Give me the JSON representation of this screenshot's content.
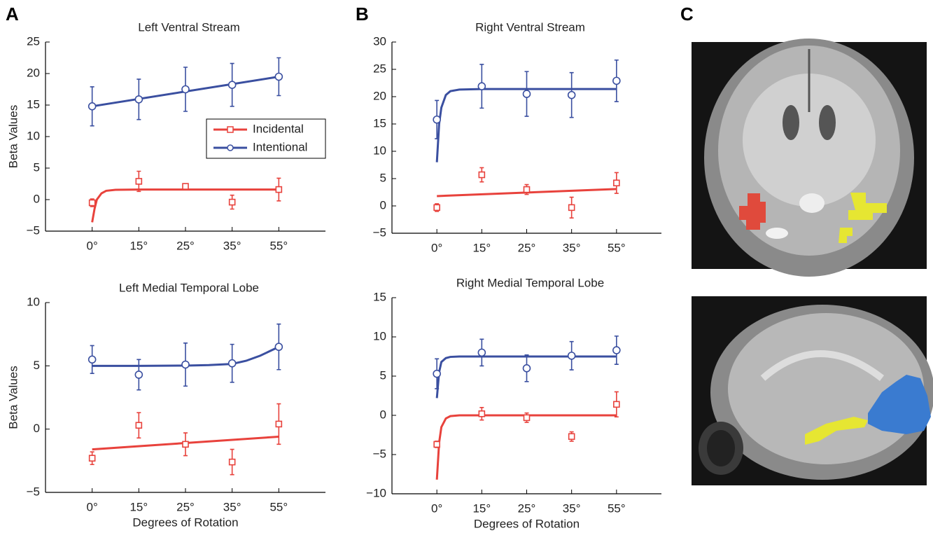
{
  "panel_labels": [
    "A",
    "B",
    "C"
  ],
  "chart_data": [
    {
      "type": "line",
      "title": "Left Ventral Stream",
      "ylabel": "Beta Values",
      "xlim": [
        -1,
        5
      ],
      "xticks": [
        {
          "value": 0,
          "label": "0°"
        },
        {
          "value": 1,
          "label": "15°"
        },
        {
          "value": 2,
          "label": "25°"
        },
        {
          "value": 3,
          "label": "35°"
        },
        {
          "value": 4,
          "label": "55°"
        }
      ],
      "ylim": [
        -5,
        25
      ],
      "yticks": [
        {
          "value": -5,
          "label": "−5"
        },
        0,
        5,
        10,
        15,
        20,
        25
      ],
      "legend": "upper right",
      "series": [
        {
          "name": "Incidental",
          "color": "#e8423c",
          "marker": "square",
          "x": [
            0,
            1,
            2,
            3,
            4
          ],
          "values": [
            -0.5,
            2.9,
            2.1,
            -0.4,
            1.6
          ],
          "errors": [
            0.6,
            1.6,
            0.4,
            1.1,
            1.8
          ],
          "fit": {
            "x": [
              0,
              0.05,
              0.1,
              0.2,
              0.3,
              0.5,
              1,
              4
            ],
            "values": [
              -3.6,
              -1.5,
              0,
              1.0,
              1.4,
              1.55,
              1.6,
              1.6
            ]
          }
        },
        {
          "name": "Intentional",
          "color": "#3a4fa0",
          "marker": "circle",
          "x": [
            0,
            1,
            2,
            3,
            4
          ],
          "values": [
            14.8,
            15.9,
            17.5,
            18.2,
            19.5
          ],
          "errors": [
            3.1,
            3.2,
            3.5,
            3.4,
            3.0
          ],
          "fit": {
            "x": [
              0,
              4
            ],
            "values": [
              14.8,
              19.5
            ]
          }
        }
      ]
    },
    {
      "type": "line",
      "title": "Right Ventral Stream",
      "xlim": [
        -1,
        5
      ],
      "xticks": [
        {
          "value": 0,
          "label": "0°"
        },
        {
          "value": 1,
          "label": "15°"
        },
        {
          "value": 2,
          "label": "25°"
        },
        {
          "value": 3,
          "label": "35°"
        },
        {
          "value": 4,
          "label": "55°"
        }
      ],
      "ylim": [
        -5,
        30
      ],
      "yticks": [
        {
          "value": -5,
          "label": "−5"
        },
        0,
        5,
        10,
        15,
        20,
        25,
        30
      ],
      "series": [
        {
          "color": "#e8423c",
          "marker": "square",
          "x": [
            0,
            1,
            2,
            3,
            4
          ],
          "values": [
            -0.3,
            5.7,
            3.0,
            -0.3,
            4.2
          ],
          "errors": [
            0.7,
            1.3,
            0.9,
            1.9,
            1.9
          ],
          "fit": {
            "x": [
              0,
              4
            ],
            "values": [
              1.8,
              3.1
            ]
          }
        },
        {
          "color": "#3a4fa0",
          "marker": "circle",
          "x": [
            0,
            1,
            2,
            3,
            4
          ],
          "values": [
            15.8,
            21.9,
            20.5,
            20.3,
            22.9
          ],
          "errors": [
            3.5,
            4.0,
            4.1,
            4.1,
            3.8
          ],
          "fit": {
            "x": [
              0,
              0.05,
              0.1,
              0.2,
              0.3,
              0.5,
              1,
              4
            ],
            "values": [
              8,
              15,
              18,
              20.3,
              21,
              21.3,
              21.4,
              21.4
            ]
          }
        }
      ]
    },
    {
      "type": "line",
      "title": "Left Medial Temporal Lobe",
      "ylabel": "Beta Values",
      "xlabel": "Degrees of Rotation",
      "xlim": [
        -1,
        5
      ],
      "xticks": [
        {
          "value": 0,
          "label": "0°"
        },
        {
          "value": 1,
          "label": "15°"
        },
        {
          "value": 2,
          "label": "25°"
        },
        {
          "value": 3,
          "label": "35°"
        },
        {
          "value": 4,
          "label": "55°"
        }
      ],
      "ylim": [
        -5,
        10
      ],
      "yticks": [
        {
          "value": -5,
          "label": "−5"
        },
        0,
        5,
        10
      ],
      "series": [
        {
          "color": "#e8423c",
          "marker": "square",
          "x": [
            0,
            1,
            2,
            3,
            4
          ],
          "values": [
            -2.3,
            0.3,
            -1.2,
            -2.6,
            0.4
          ],
          "errors": [
            0.5,
            1.0,
            0.9,
            1.0,
            1.6
          ],
          "fit": {
            "x": [
              0,
              4
            ],
            "values": [
              -1.6,
              -0.6
            ]
          }
        },
        {
          "color": "#3a4fa0",
          "marker": "circle",
          "x": [
            0,
            1,
            2,
            3,
            4
          ],
          "values": [
            5.5,
            4.3,
            5.1,
            5.2,
            6.5
          ],
          "errors": [
            1.1,
            1.2,
            1.7,
            1.5,
            1.8
          ],
          "fit": {
            "x": [
              0,
              1,
              2,
              2.5,
              3,
              3.3,
              3.6,
              4
            ],
            "values": [
              5,
              5,
              5.02,
              5.06,
              5.15,
              5.4,
              5.8,
              6.5
            ]
          }
        }
      ]
    },
    {
      "type": "line",
      "title": "Right Medial Temporal Lobe",
      "xlabel": "Degrees of Rotation",
      "xlim": [
        -1,
        5
      ],
      "xticks": [
        {
          "value": 0,
          "label": "0°"
        },
        {
          "value": 1,
          "label": "15°"
        },
        {
          "value": 2,
          "label": "25°"
        },
        {
          "value": 3,
          "label": "35°"
        },
        {
          "value": 4,
          "label": "55°"
        }
      ],
      "ylim": [
        -10,
        15
      ],
      "yticks": [
        {
          "value": -10,
          "label": "−10"
        },
        {
          "value": -5,
          "label": "−5"
        },
        0,
        5,
        10,
        15
      ],
      "series": [
        {
          "color": "#e8423c",
          "marker": "square",
          "x": [
            0,
            1,
            2,
            3,
            4
          ],
          "values": [
            -3.7,
            0.2,
            -0.3,
            -2.7,
            1.4
          ],
          "errors": [
            0.4,
            0.8,
            0.6,
            0.6,
            1.6
          ],
          "fit": {
            "x": [
              0,
              0.05,
              0.1,
              0.2,
              0.3,
              0.5,
              1,
              4
            ],
            "values": [
              -8.2,
              -3.5,
              -1.5,
              -0.4,
              -0.1,
              0,
              0,
              0
            ]
          }
        },
        {
          "color": "#3a4fa0",
          "marker": "circle",
          "x": [
            0,
            1,
            2,
            3,
            4
          ],
          "values": [
            5.3,
            8.0,
            6.0,
            7.6,
            8.3
          ],
          "errors": [
            1.9,
            1.7,
            1.7,
            1.8,
            1.8
          ],
          "fit": {
            "x": [
              0,
              0.05,
              0.1,
              0.2,
              0.3,
              0.5,
              1,
              4
            ],
            "values": [
              2.2,
              5.5,
              6.8,
              7.3,
              7.45,
              7.5,
              7.5,
              7.5
            ]
          }
        }
      ]
    }
  ]
}
